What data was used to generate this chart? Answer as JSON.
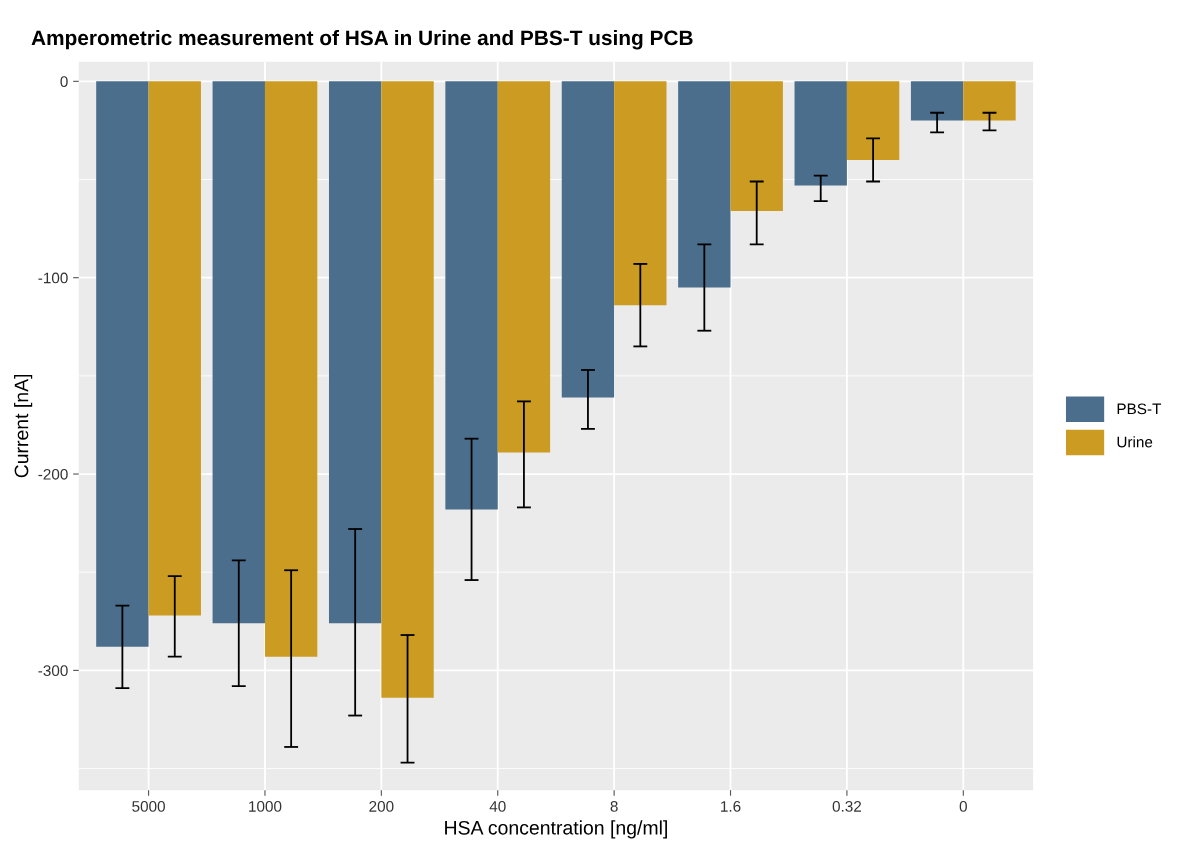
{
  "chart_data": {
    "type": "bar",
    "title": "Amperometric measurement of HSA in Urine and PBS-T using PCB",
    "xlabel": "HSA concentration [ng/ml]",
    "ylabel": "Current [nA]",
    "categories": [
      "5000",
      "1000",
      "200",
      "40",
      "8",
      "1.6",
      "0.32",
      "0"
    ],
    "series": [
      {
        "name": "PBS-T",
        "color": "#4a6e8c",
        "values": [
          -288,
          -276,
          -276,
          -218,
          -161,
          -105,
          -53,
          -20
        ],
        "errors": [
          [
            -309,
            -267
          ],
          [
            -308,
            -244
          ],
          [
            -323,
            -228
          ],
          [
            -254,
            -182
          ],
          [
            -177,
            -147
          ],
          [
            -127,
            -83
          ],
          [
            -61,
            -48
          ],
          [
            -26,
            -16
          ]
        ]
      },
      {
        "name": "Urine",
        "color": "#cc9c22",
        "values": [
          -272,
          -293,
          -314,
          -189,
          -114,
          -66,
          -40,
          -20
        ],
        "errors": [
          [
            -293,
            -252
          ],
          [
            -339,
            -249
          ],
          [
            -347,
            -282
          ],
          [
            -217,
            -163
          ],
          [
            -135,
            -93
          ],
          [
            -83,
            -51
          ],
          [
            -51,
            -29
          ],
          [
            -25,
            -16
          ]
        ]
      }
    ],
    "ylim": [
      -361,
      10
    ],
    "yticks": [
      {
        "value": -350,
        "label": null
      },
      -300,
      {
        "value": -250,
        "label": null
      },
      -200,
      {
        "value": -150,
        "label": null
      },
      -100,
      {
        "value": -50,
        "label": null
      },
      0
    ],
    "grid": true,
    "legend": "right"
  }
}
